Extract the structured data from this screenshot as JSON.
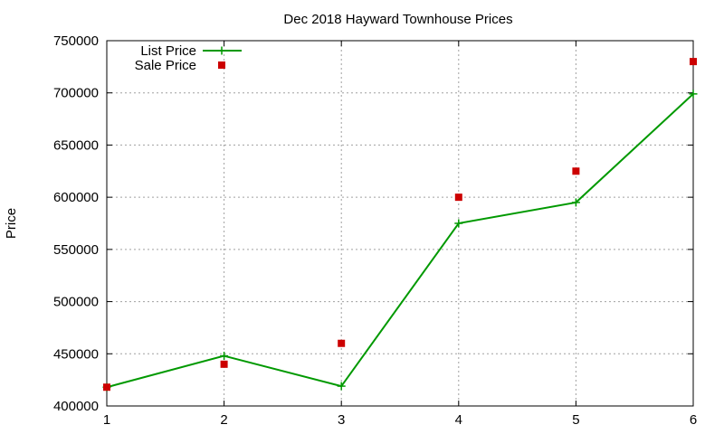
{
  "chart_data": {
    "type": "line",
    "title": "Dec 2018 Hayward Townhouse Prices",
    "xlabel": "",
    "ylabel": "Price",
    "x": [
      1,
      2,
      3,
      4,
      5,
      6
    ],
    "xticks": [
      "1",
      "2",
      "3",
      "4",
      "5",
      "6"
    ],
    "yticks": [
      "400000",
      "450000",
      "500000",
      "550000",
      "600000",
      "650000",
      "700000",
      "750000"
    ],
    "xlim": [
      1,
      6
    ],
    "ylim": [
      400000,
      750000
    ],
    "grid": true,
    "legend_position": "top-left",
    "series": [
      {
        "name": "List Price",
        "style": "line-with-plus-markers",
        "color": "#009900",
        "values": [
          418000,
          448000,
          419000,
          575000,
          595000,
          699000
        ]
      },
      {
        "name": "Sale Price",
        "style": "square-markers",
        "color": "#cc0000",
        "values": [
          418000,
          440000,
          460000,
          600000,
          625000,
          730000
        ]
      }
    ]
  }
}
